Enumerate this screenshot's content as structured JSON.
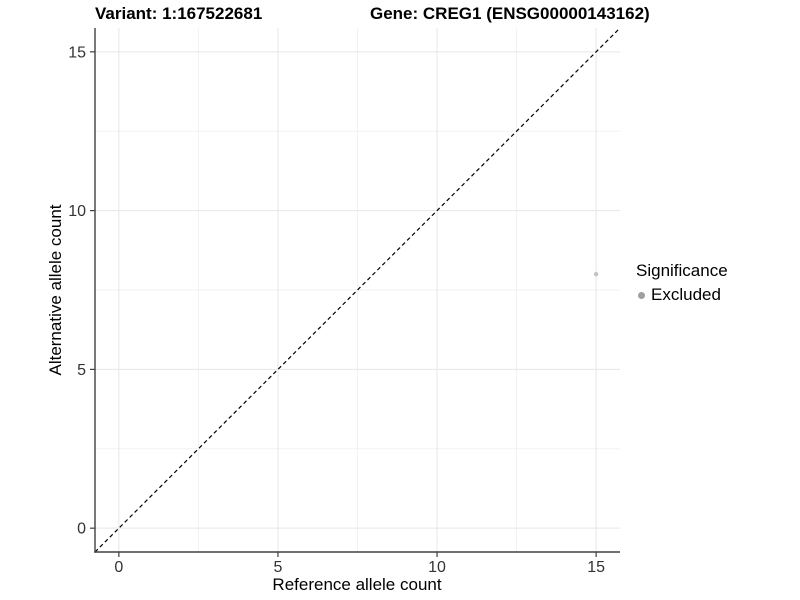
{
  "titles": {
    "variant": "Variant: 1:167522681",
    "gene": "Gene: CREG1 (ENSG00000143162)"
  },
  "chart_data": {
    "type": "scatter",
    "title_left": "Variant: 1:167522681",
    "title_right": "Gene: CREG1 (ENSG00000143162)",
    "xlabel": "Reference allele count",
    "ylabel": "Alternative allele count",
    "xlim": [
      -0.75,
      15.75
    ],
    "ylim": [
      -0.75,
      15.75
    ],
    "xticks": [
      0,
      5,
      10,
      15
    ],
    "yticks": [
      0,
      5,
      10,
      15
    ],
    "xminor": [
      2.5,
      7.5,
      12.5
    ],
    "yminor": [
      2.5,
      7.5,
      12.5
    ],
    "grid": "major+minor",
    "reference_line": {
      "kind": "identity",
      "slope": 1,
      "intercept": 0,
      "style": "dashed",
      "color": "#000000"
    },
    "series": [
      {
        "name": "Excluded",
        "color": "#c3c3c3",
        "point_radius": 2.2,
        "points": [
          {
            "x": 15,
            "y": 8
          }
        ]
      }
    ],
    "legend": {
      "title": "Significance",
      "position": "right",
      "entries": [
        {
          "label": "Excluded",
          "color": "#9f9f9f"
        }
      ]
    }
  },
  "colors": {
    "background": "#ffffff",
    "grid_major": "#e6e6e6",
    "grid_minor": "#f2f2f2",
    "axis_line": "#404040",
    "tick_mark": "#404040",
    "tick_label": "#333333",
    "text": "#000000"
  }
}
